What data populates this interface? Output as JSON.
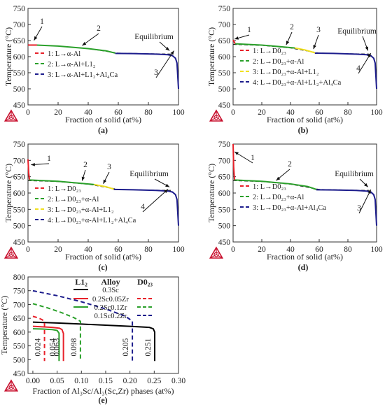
{
  "chart_data": [
    {
      "panel": "(a)",
      "type": "line",
      "xlabel": "Fraction of solid (at%)",
      "ylabel": "Temperature (°C)",
      "xlim": [
        0,
        100
      ],
      "ylim": [
        450,
        750
      ],
      "xticks": [
        0,
        20,
        40,
        60,
        80,
        100
      ],
      "yticks": [
        450,
        500,
        550,
        600,
        650,
        700,
        750
      ],
      "series": [
        {
          "name": "1: L→α-Al",
          "color": "#e8212a",
          "x": [
            0,
            6
          ],
          "y": [
            636,
            636
          ]
        },
        {
          "name": "2: L→α-Al+L1₂",
          "color": "#2aa02a",
          "x": [
            6,
            20,
            40,
            52,
            58
          ],
          "y": [
            636,
            633,
            625,
            618,
            611
          ]
        },
        {
          "name": "3: L→α-Al+L1₂+Al₄Ca",
          "color": "#1c1c8c",
          "x": [
            58,
            70,
            85,
            93,
            96,
            98,
            99,
            100
          ],
          "y": [
            610,
            609.5,
            608,
            606,
            603,
            595,
            580,
            500
          ]
        }
      ],
      "equilibrium": {
        "x": [
          0,
          20,
          40,
          60,
          80,
          95
        ],
        "y": [
          637,
          633,
          625,
          611,
          609,
          608
        ]
      },
      "annotations": [
        "1",
        "2",
        "3",
        "Equilibrium"
      ]
    },
    {
      "panel": "(b)",
      "type": "line",
      "xlabel": "Fraction of solid (at%)",
      "ylabel": "Temperature (°C)",
      "xlim": [
        0,
        100
      ],
      "ylim": [
        450,
        750
      ],
      "xticks": [
        0,
        20,
        40,
        60,
        80,
        100
      ],
      "yticks": [
        450,
        500,
        550,
        600,
        650,
        700,
        750
      ],
      "series": [
        {
          "name": "1: L→D0₂₃",
          "color": "#e8212a",
          "x": [
            0,
            1.5
          ],
          "y": [
            652,
            640
          ]
        },
        {
          "name": "2: L→D0₂₃+α-Al",
          "color": "#2aa02a",
          "x": [
            1.5,
            20,
            43
          ],
          "y": [
            640,
            636,
            627
          ]
        },
        {
          "name": "3: L→D0₂₃+α-Al+L1₂",
          "color": "#f0e020",
          "x": [
            43,
            50,
            57
          ],
          "y": [
            627,
            621,
            612
          ]
        },
        {
          "name": "4: L→D0₂₃+α-Al+L1₂+Al₄Ca",
          "color": "#1c1c8c",
          "x": [
            57,
            70,
            85,
            93,
            96,
            98,
            99,
            100
          ],
          "y": [
            611,
            610,
            608,
            606,
            603,
            595,
            580,
            500
          ]
        }
      ],
      "equilibrium": {
        "x": [
          0,
          20,
          40,
          60,
          80,
          95
        ],
        "y": [
          638,
          635,
          627,
          611,
          609,
          608
        ]
      },
      "annotations": [
        "1",
        "2",
        "3",
        "4",
        "Equilibrium"
      ]
    },
    {
      "panel": "(c)",
      "type": "line",
      "xlabel": "Fraction of solid (at%)",
      "ylabel": "Temperature (°C)",
      "xlim": [
        0,
        100
      ],
      "ylim": [
        450,
        750
      ],
      "xticks": [
        0,
        20,
        40,
        60,
        80,
        100
      ],
      "yticks": [
        450,
        500,
        550,
        600,
        650,
        700,
        750
      ],
      "series": [
        {
          "name": "1: L→D0₂₃",
          "color": "#e8212a",
          "x": [
            0,
            0.5,
            1
          ],
          "y": [
            703,
            660,
            640
          ]
        },
        {
          "name": "2: L→D0₂₃+α-Al",
          "color": "#2aa02a",
          "x": [
            1,
            20,
            44
          ],
          "y": [
            640,
            636,
            626
          ]
        },
        {
          "name": "3: L→D0₂₃+α-Al+L1₂",
          "color": "#f0e020",
          "x": [
            44,
            52,
            57
          ],
          "y": [
            626,
            619,
            612
          ]
        },
        {
          "name": "4: L→D0₂₃+α-Al+L1₂+Al₄Ca",
          "color": "#1c1c8c",
          "x": [
            57,
            70,
            85,
            93,
            96,
            98,
            99,
            100
          ],
          "y": [
            611,
            610,
            608,
            606,
            603,
            595,
            580,
            500
          ]
        }
      ],
      "equilibrium": {
        "x": [
          0,
          20,
          40,
          60,
          80,
          95
        ],
        "y": [
          638,
          635,
          627,
          611,
          609,
          608
        ]
      },
      "annotations": [
        "1",
        "2",
        "3",
        "4",
        "Equilibrium"
      ]
    },
    {
      "panel": "(d)",
      "type": "line",
      "xlabel": "Fraction of solid (at%)",
      "ylabel": "Temperature (°C)",
      "xlim": [
        0,
        100
      ],
      "ylim": [
        450,
        750
      ],
      "xticks": [
        0,
        20,
        40,
        60,
        80,
        100
      ],
      "yticks": [
        450,
        500,
        550,
        600,
        650,
        700,
        750
      ],
      "series": [
        {
          "name": "1: L→D0₂₃",
          "color": "#e8212a",
          "x": [
            0,
            0.4,
            1
          ],
          "y": [
            750,
            680,
            640
          ]
        },
        {
          "name": "2: L→D0₂₃+α-Al",
          "color": "#2aa02a",
          "x": [
            1,
            20,
            40,
            52,
            58
          ],
          "y": [
            640,
            636,
            628,
            620,
            611
          ]
        },
        {
          "name": "3: L→D0₂₃+α-Al+Al₄Ca",
          "color": "#1c1c8c",
          "x": [
            58,
            70,
            85,
            93,
            96,
            98,
            99,
            100
          ],
          "y": [
            610,
            609.5,
            608,
            606,
            603,
            595,
            580,
            500
          ]
        }
      ],
      "equilibrium": {
        "x": [
          0,
          20,
          40,
          60,
          80,
          95
        ],
        "y": [
          638,
          635,
          627,
          611,
          609,
          608
        ]
      },
      "annotations": [
        "1",
        "2",
        "3",
        "Equilibrium"
      ]
    },
    {
      "panel": "(e)",
      "type": "line",
      "xlabel": "Fraction of Al₃Sc/Al₃(Sc,Zr) phases (at%)",
      "ylabel": "Temperature (°C)",
      "xlim": [
        -0.01,
        0.3
      ],
      "ylim": [
        450,
        800
      ],
      "xticks": [
        0.0,
        0.05,
        0.1,
        0.15,
        0.2,
        0.25,
        0.3
      ],
      "xtick_labels": [
        "0.00",
        "0.05",
        "0.10",
        "0.15",
        "0.20",
        "0.25",
        "0.30"
      ],
      "yticks": [
        450,
        500,
        550,
        600,
        650,
        700,
        750,
        800
      ],
      "legend_headers": [
        "L1₂",
        "Alloy",
        "D0₂₃"
      ],
      "series": [
        {
          "name": "0.3Sc",
          "phase": "L1₂",
          "color": "#000000",
          "dashed": false,
          "x": [
            0,
            0.05,
            0.1,
            0.15,
            0.2,
            0.24,
            0.248,
            0.251,
            0.251
          ],
          "y": [
            636,
            633,
            629,
            625,
            621,
            617,
            612,
            600,
            495
          ]
        },
        {
          "name": "0.2Sc0.05Zr",
          "phase": "L1₂",
          "color": "#e8212a",
          "dashed": false,
          "x": [
            0,
            0.02,
            0.04,
            0.055,
            0.06,
            0.063,
            0.063
          ],
          "y": [
            621,
            619,
            617,
            614,
            609,
            595,
            495
          ]
        },
        {
          "name": "0.2Sc0.05Zr",
          "phase": "D0₂₃",
          "color": "#e8212a",
          "dashed": true,
          "x": [
            0,
            0.012,
            0.02,
            0.024,
            0.024
          ],
          "y": [
            657,
            651,
            644,
            633,
            495
          ]
        },
        {
          "name": "0.2Sc0.1Zr",
          "phase": "L1₂",
          "color": "#2aa02a",
          "dashed": false,
          "x": [
            0,
            0.02,
            0.04,
            0.05,
            0.054,
            0.054
          ],
          "y": [
            612,
            611,
            609,
            606,
            596,
            495
          ]
        },
        {
          "name": "0.2Sc0.1Zr",
          "phase": "D0₂₃",
          "color": "#2aa02a",
          "dashed": true,
          "x": [
            0,
            0.03,
            0.06,
            0.085,
            0.098,
            0.098
          ],
          "y": [
            703,
            688,
            670,
            652,
            639,
            495
          ]
        },
        {
          "name": "0.1Sc0.2Zr",
          "phase": "D0₂₃",
          "color": "#1c1c8c",
          "dashed": true,
          "x": [
            0,
            0.05,
            0.1,
            0.15,
            0.19,
            0.205,
            0.205
          ],
          "y": [
            750,
            732,
            710,
            684,
            658,
            640,
            495
          ]
        }
      ],
      "value_labels": [
        "0.024",
        "0.054",
        "0.063",
        "0.098",
        "0.205",
        "0.251"
      ]
    }
  ],
  "panel_labels": [
    "(a)",
    "(b)",
    "(c)",
    "(d)",
    "(e)"
  ],
  "colors": {
    "red": "#e8212a",
    "green": "#2aa02a",
    "yellow": "#f0e020",
    "navy": "#1c1c8c",
    "black": "#000000",
    "logo": "#c8102e"
  }
}
